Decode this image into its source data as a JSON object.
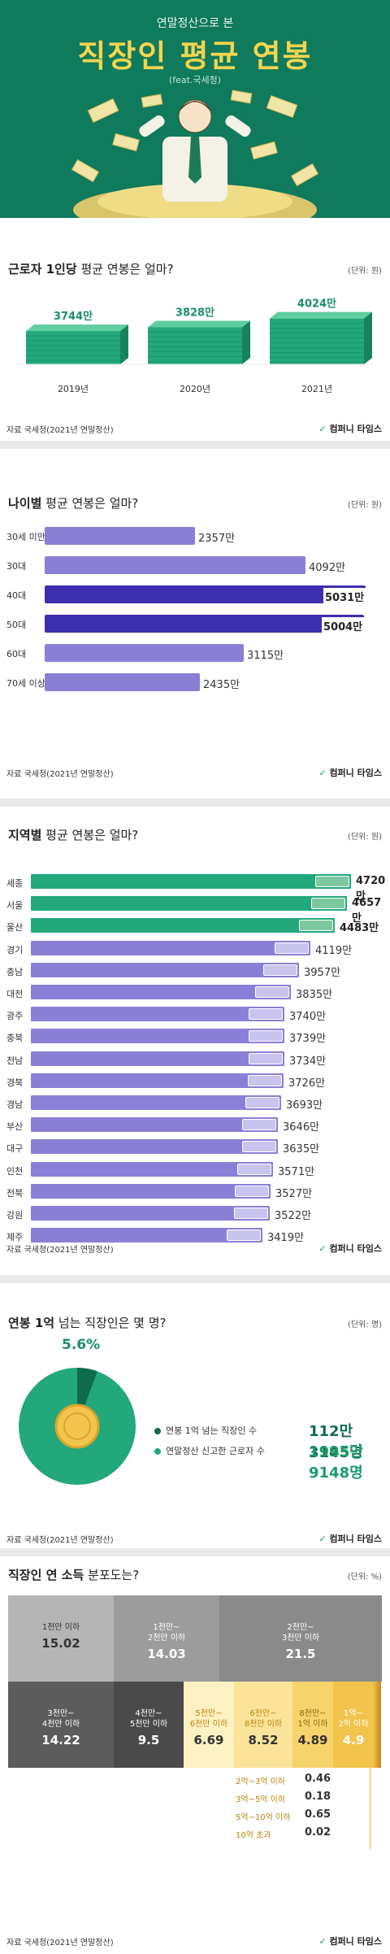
{
  "hero": {
    "subtitle": "연말정산으로 본",
    "title": "직장인 평균 연봉",
    "feat": "(feat.국세청)"
  },
  "brand": "컴퍼니 타임스",
  "source": "자료 국세청(2021년 연말정산)",
  "source_short": "자료 국세청(2021년 연말정산)",
  "colors": {
    "hero_bg": "#0f7a5c",
    "title_yellow": "#f5d44e",
    "green": "#22a87a",
    "purple": "#8a7fd6",
    "dark_purple": "#3d2fb0",
    "money_green": "#7cc9a0",
    "donut_green": "#22a87a",
    "donut_dark": "#0f6b4e",
    "gray1": "#b5b5b5",
    "gray2": "#9c9c9c",
    "gray3": "#8a8a8a",
    "dark1": "#5c5c5c",
    "dark2": "#4a4a4a",
    "yellow1": "#fdf0c2",
    "yellow2": "#fbe39a",
    "yellow3": "#f7d36b",
    "yellow4": "#f2c44b",
    "yellow5": "#e6b53a"
  },
  "s1": {
    "title_bold": "근로자 1인당",
    "title_rest": " 평균 연봉은 얼마?",
    "unit": "(단위: 원)",
    "chart_data": {
      "type": "bar",
      "categories": [
        "2019년",
        "2020년",
        "2021년"
      ],
      "values": [
        3744,
        3828,
        4024
      ],
      "labels": [
        "3744만",
        "3828만",
        "4024만"
      ]
    }
  },
  "s2": {
    "title_bold": "나이별",
    "title_rest": " 평균 연봉은 얼마?",
    "unit": "(단위: 원)",
    "chart_data": {
      "type": "bar",
      "categories": [
        "30세 미만",
        "30대",
        "40대",
        "50대",
        "60대",
        "70세 이상"
      ],
      "values": [
        2357,
        4092,
        5031,
        5004,
        3115,
        2435
      ],
      "labels": [
        "2357만",
        "4092만",
        "5031만",
        "5004만",
        "3115만",
        "2435만"
      ],
      "highlight": [
        false,
        false,
        true,
        true,
        false,
        false
      ]
    }
  },
  "s3": {
    "title_bold": "지역별",
    "title_rest": " 평균 연봉은 얼마?",
    "unit": "(단위: 원)",
    "chart_data": {
      "type": "bar",
      "categories": [
        "세종",
        "서울",
        "울산",
        "경기",
        "충남",
        "대전",
        "광주",
        "충북",
        "전남",
        "경북",
        "경남",
        "부산",
        "대구",
        "인천",
        "전북",
        "강원",
        "제주"
      ],
      "values": [
        4720,
        4657,
        4483,
        4119,
        3957,
        3835,
        3740,
        3739,
        3734,
        3726,
        3693,
        3646,
        3635,
        3571,
        3527,
        3522,
        3419
      ],
      "labels": [
        "4720만",
        "4657만",
        "4483만",
        "4119만",
        "3957만",
        "3835만",
        "3740만",
        "3739만",
        "3734만",
        "3726만",
        "3693만",
        "3646만",
        "3635만",
        "3571만",
        "3527만",
        "3522만",
        "3419만"
      ],
      "highlight": [
        true,
        true,
        true,
        false,
        false,
        false,
        false,
        false,
        false,
        false,
        false,
        false,
        false,
        false,
        false,
        false,
        false
      ]
    }
  },
  "s4": {
    "title_bold": "연봉 1억",
    "title_rest": " 넘는 직장인은 몇 명?",
    "unit": "(단위: 명)",
    "chart_data": {
      "type": "pie",
      "percent_label": "5.6%",
      "share": 0.056,
      "legend": [
        {
          "label": "연봉 1억 넘는 직장인 수",
          "value": "112만 3145명"
        },
        {
          "label": "연말정산 신고한 근로자 수",
          "value": "1995만 9148명"
        }
      ]
    }
  },
  "s5": {
    "title_bold": "직장인 연 소득",
    "title_rest": " 분포도는?",
    "unit": "(단위: %)",
    "chart_data": {
      "type": "heatmap",
      "categories": [
        "1천만 이하",
        "1천만~2천만 이하",
        "2천만~3천만 이하",
        "3천만~4천만 이하",
        "4천만~5천만 이하",
        "5천만~6천만 이하",
        "6천만~8천만 이하",
        "8천만~1억 이하",
        "1억~2억 이하",
        "2억~3억 이하",
        "3억~5억 이하",
        "5억~10억 이하",
        "10억 초과"
      ],
      "values": [
        15.02,
        14.03,
        21.5,
        14.22,
        9.5,
        6.69,
        8.52,
        4.89,
        4.9,
        0.46,
        0.18,
        0.65,
        0.02
      ],
      "cells": [
        {
          "l1": "1천만 이하",
          "l2": "",
          "v": "15.02"
        },
        {
          "l1": "1천만~",
          "l2": "2천만 이하",
          "v": "14.03"
        },
        {
          "l1": "2천만~",
          "l2": "3천만 이하",
          "v": "21.5"
        },
        {
          "l1": "3천만~",
          "l2": "4천만 이하",
          "v": "14.22"
        },
        {
          "l1": "4천만~",
          "l2": "5천만 이하",
          "v": "9.5"
        },
        {
          "l1": "5천만~",
          "l2": "6천만 이하",
          "v": "6.69"
        },
        {
          "l1": "6천만~",
          "l2": "8천만 이하",
          "v": "8.52"
        },
        {
          "l1": "8천만~",
          "l2": "1억 이하",
          "v": "4.89"
        },
        {
          "l1": "1억~",
          "l2": "2억 이하",
          "v": "4.9"
        }
      ],
      "small": [
        {
          "l": "2억~3억 이하",
          "v": "0.46"
        },
        {
          "l": "3억~5억 이하",
          "v": "0.18"
        },
        {
          "l": "5억~10억 이하",
          "v": "0.65"
        },
        {
          "l": "10억 초과",
          "v": "0.02"
        }
      ]
    }
  }
}
